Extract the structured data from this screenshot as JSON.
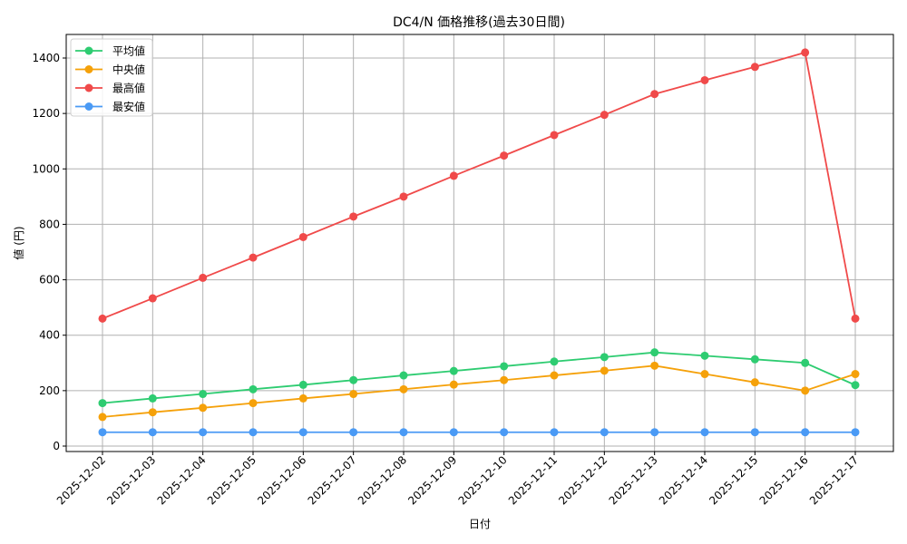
{
  "chart_data": {
    "type": "line",
    "title": "DC4/N 価格推移(過去30日間)",
    "xlabel": "日付",
    "ylabel": "値 (円)",
    "ylim": [
      -20,
      1490
    ],
    "yticks": [
      0,
      200,
      400,
      600,
      800,
      1000,
      1200,
      1400
    ],
    "grid": true,
    "legend_position": "upper left",
    "categories": [
      "2025-12-02",
      "2025-12-03",
      "2025-12-04",
      "2025-12-05",
      "2025-12-06",
      "2025-12-07",
      "2025-12-08",
      "2025-12-09",
      "2025-12-10",
      "2025-12-11",
      "2025-12-12",
      "2025-12-13",
      "2025-12-14",
      "2025-12-15",
      "2025-12-16",
      "2025-12-17"
    ],
    "series": [
      {
        "name": "平均値",
        "color": "#2ecc71",
        "values": [
          155,
          172,
          188,
          205,
          221,
          238,
          255,
          271,
          288,
          305,
          321,
          338,
          326,
          313,
          300,
          220
        ]
      },
      {
        "name": "中央値",
        "color": "#f5a10a",
        "values": [
          105,
          122,
          138,
          155,
          172,
          188,
          205,
          222,
          238,
          255,
          272,
          290,
          260,
          230,
          200,
          260
        ]
      },
      {
        "name": "最高値",
        "color": "#f04a4a",
        "values": [
          460,
          533,
          607,
          680,
          754,
          828,
          900,
          975,
          1048,
          1122,
          1195,
          1270,
          1320,
          1368,
          1420,
          460
        ]
      },
      {
        "name": "最安値",
        "color": "#4a9af5",
        "values": [
          50,
          50,
          50,
          50,
          50,
          50,
          50,
          50,
          50,
          50,
          50,
          50,
          50,
          50,
          50,
          50
        ]
      }
    ]
  }
}
